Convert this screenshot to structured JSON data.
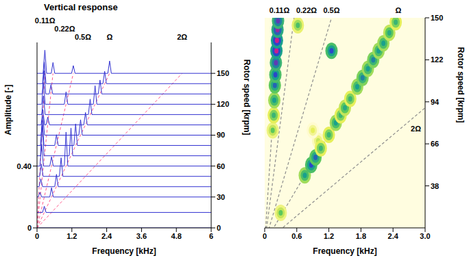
{
  "chart_data": [
    {
      "type": "line",
      "title": "Vertical response",
      "x_label": "Frequency [kHz]",
      "y_label": "Amplitude [-]",
      "y2_label": "Rotor speed [krpm]",
      "xlim": [
        0,
        6
      ],
      "xticks": [
        0,
        1.2,
        2.4,
        3.6,
        4.8,
        6
      ],
      "ylim": [
        0,
        1.2
      ],
      "yticks": [
        0,
        {
          "value": 0.4,
          "label": "0.40"
        }
      ],
      "y2lim": [
        0,
        180
      ],
      "y2ticks": [
        0,
        30,
        60,
        90,
        120,
        150
      ],
      "color": "#3030d0",
      "series": [
        {
          "speed": 0,
          "x": [
            0,
            6
          ],
          "values": [
            0,
            0
          ]
        },
        {
          "speed": 15,
          "x": [
            0,
            0.19,
            0.25,
            0.31,
            6
          ],
          "values": [
            0,
            0,
            0.04,
            0,
            0
          ]
        },
        {
          "speed": 30,
          "x": [
            0,
            0.04,
            0.1,
            0.16,
            0.44,
            0.5,
            0.56,
            6
          ],
          "values": [
            0,
            0,
            0.03,
            0,
            0,
            0.06,
            0,
            0
          ]
        },
        {
          "speed": 40,
          "x": [
            0,
            0.07,
            0.13,
            0.19,
            0.61,
            0.67,
            0.73,
            6
          ],
          "values": [
            0,
            0,
            0.05,
            0,
            0,
            0.08,
            0,
            0
          ]
        },
        {
          "speed": 50,
          "x": [
            0,
            0.09,
            0.15,
            0.21,
            0.77,
            0.83,
            0.89,
            6
          ],
          "values": [
            0,
            0,
            0.08,
            0,
            0,
            0.12,
            0,
            0
          ]
        },
        {
          "speed": 60,
          "x": [
            0,
            0.1,
            0.16,
            0.22,
            0.44,
            0.5,
            0.56,
            0.94,
            1.0,
            1.06,
            6
          ],
          "values": [
            0,
            0,
            0.14,
            0,
            0,
            0.06,
            0,
            0,
            0.22,
            0,
            0
          ]
        },
        {
          "speed": 70,
          "x": [
            0,
            0.12,
            0.18,
            0.24,
            1.11,
            1.17,
            1.23,
            6
          ],
          "values": [
            0,
            0,
            0.2,
            0,
            0,
            0.18,
            0,
            0
          ]
        },
        {
          "speed": 80,
          "x": [
            0,
            0.12,
            0.18,
            0.24,
            0.61,
            0.67,
            0.73,
            1.27,
            1.33,
            1.39,
            6
          ],
          "values": [
            0,
            0,
            0.16,
            0,
            0,
            0.07,
            0,
            0,
            0.14,
            0,
            0
          ]
        },
        {
          "speed": 90,
          "x": [
            0,
            0.14,
            0.2,
            0.26,
            1.44,
            1.5,
            1.56,
            6
          ],
          "values": [
            0,
            0,
            0.12,
            0,
            0,
            0.1,
            0,
            0
          ]
        },
        {
          "speed": 100,
          "x": [
            0,
            0.14,
            0.2,
            0.26,
            0.31,
            0.37,
            0.43,
            1.61,
            1.67,
            1.73,
            6
          ],
          "values": [
            0,
            0,
            0.1,
            0,
            0,
            0.05,
            0,
            0,
            0.08,
            0,
            0
          ]
        },
        {
          "speed": 110,
          "x": [
            0,
            0.16,
            0.22,
            0.28,
            1.77,
            1.83,
            1.89,
            6
          ],
          "values": [
            0,
            0,
            0.12,
            0,
            0,
            0.1,
            0,
            0
          ]
        },
        {
          "speed": 120,
          "x": [
            0,
            0.16,
            0.22,
            0.28,
            0.94,
            1.0,
            1.06,
            1.94,
            2.0,
            2.06,
            6
          ],
          "values": [
            0,
            0,
            0.14,
            0,
            0,
            0.08,
            0,
            0,
            0.12,
            0,
            0
          ]
        },
        {
          "speed": 130,
          "x": [
            0,
            0.18,
            0.24,
            0.3,
            0.42,
            0.48,
            0.54,
            2.11,
            2.17,
            2.23,
            6
          ],
          "values": [
            0,
            0,
            0.15,
            0,
            0,
            0.06,
            0,
            0,
            0.09,
            0,
            0
          ]
        },
        {
          "speed": 140,
          "x": [
            0,
            0.19,
            0.25,
            0.31,
            2.27,
            2.33,
            2.39,
            6
          ],
          "values": [
            0,
            0,
            0.14,
            0,
            0,
            0.08,
            0,
            0
          ]
        },
        {
          "speed": 150,
          "x": [
            0,
            0.21,
            0.27,
            0.33,
            0.49,
            0.55,
            0.61,
            1.19,
            1.25,
            1.31,
            2.44,
            2.5,
            2.56,
            6
          ],
          "values": [
            0,
            0,
            0.15,
            0,
            0,
            0.07,
            0,
            0,
            0.05,
            0,
            0,
            0.08,
            0,
            0
          ]
        }
      ],
      "order_lines": [
        {
          "name": "0.11Ω",
          "x": [
            0,
            0.275
          ],
          "values": [
            0,
            150
          ],
          "axis": "y2",
          "color": "#ff5a8c",
          "line_style": "dashed"
        },
        {
          "name": "0.22Ω",
          "x": [
            0,
            0.55
          ],
          "values": [
            0,
            150
          ],
          "axis": "y2",
          "color": "#ff5a8c",
          "line_style": "dashed"
        },
        {
          "name": "0.5Ω",
          "x": [
            0,
            1.25
          ],
          "values": [
            0,
            150
          ],
          "axis": "y2",
          "color": "#ff5a8c",
          "line_style": "dashed"
        },
        {
          "name": "Ω",
          "x": [
            0,
            2.5
          ],
          "values": [
            0,
            150
          ],
          "axis": "y2",
          "color": "#ff5a8c",
          "line_style": "dashed"
        },
        {
          "name": "2Ω",
          "x": [
            0,
            5.0
          ],
          "values": [
            0,
            150
          ],
          "axis": "y2",
          "color": "#ff5a8c",
          "line_style": "dashed"
        }
      ]
    },
    {
      "type": "heatmap",
      "x_label": "Frequency [kHz]",
      "y_label": "Rotor speed [krpm]",
      "xlim": [
        0,
        3
      ],
      "xticks": [
        0,
        0.6,
        1.2,
        1.8,
        2.4,
        {
          "value": 3,
          "label": "3.0"
        }
      ],
      "ylim": [
        10,
        150
      ],
      "yticks": [
        38,
        66,
        94,
        122,
        150
      ],
      "cells": {
        "x": [
          1.0,
          0.9,
          0.3,
          0.75,
          0.87,
          0.95,
          1.05,
          1.2,
          1.33,
          1.42,
          1.5,
          1.6,
          1.73,
          1.83,
          1.93,
          2.03,
          2.13,
          2.22,
          2.33,
          2.45,
          0.15,
          0.17,
          0.18,
          0.19,
          0.2,
          0.21,
          0.22,
          0.23,
          0.24,
          0.25,
          1.25,
          0.62
        ],
        "y": [
          68,
          75,
          20,
          45,
          52,
          57,
          63,
          72,
          80,
          85,
          90,
          96,
          104,
          110,
          116,
          122,
          128,
          133,
          140,
          147,
          75,
          85,
          95,
          105,
          112,
          120,
          128,
          135,
          142,
          148,
          128,
          145
        ],
        "z": [
          0.35,
          0.3,
          0.5,
          0.7,
          0.85,
          0.8,
          0.6,
          0.6,
          0.7,
          0.6,
          0.65,
          0.6,
          0.7,
          0.75,
          0.7,
          0.75,
          0.7,
          0.7,
          0.65,
          0.6,
          0.5,
          0.6,
          0.7,
          0.8,
          0.85,
          0.9,
          1.0,
          1.0,
          0.95,
          0.9,
          0.85,
          0.55
        ]
      },
      "zlim": [
        0,
        1
      ],
      "order_lines": [
        {
          "name": "0.11Ω",
          "x": [
            0,
            0.275
          ],
          "values": [
            0,
            150
          ],
          "color": "#8c8c8c",
          "line_style": "dashed"
        },
        {
          "name": "0.22Ω",
          "x": [
            0,
            0.55
          ],
          "values": [
            0,
            150
          ],
          "color": "#8c8c8c",
          "line_style": "dashed"
        },
        {
          "name": "0.5Ω",
          "x": [
            0,
            1.25
          ],
          "values": [
            0,
            150
          ],
          "color": "#8c8c8c",
          "line_style": "dashed"
        },
        {
          "name": "Ω",
          "x": [
            0,
            2.5
          ],
          "values": [
            0,
            150
          ],
          "color": "#8c8c8c",
          "line_style": "dashed"
        },
        {
          "name": "2Ω",
          "x": [
            0,
            5.0
          ],
          "values": [
            0,
            150
          ],
          "color": "#8c8c8c",
          "line_style": "dashed"
        }
      ]
    }
  ]
}
